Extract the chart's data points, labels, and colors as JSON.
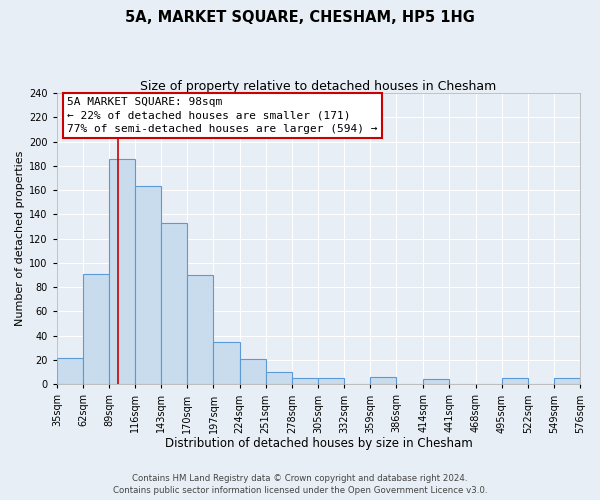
{
  "title": "5A, MARKET SQUARE, CHESHAM, HP5 1HG",
  "subtitle": "Size of property relative to detached houses in Chesham",
  "xlabel": "Distribution of detached houses by size in Chesham",
  "ylabel": "Number of detached properties",
  "bin_edges": [
    35,
    62,
    89,
    116,
    143,
    170,
    197,
    224,
    251,
    278,
    305,
    332,
    359,
    386,
    414,
    441,
    468,
    495,
    522,
    549,
    576
  ],
  "bar_heights": [
    22,
    91,
    186,
    163,
    133,
    90,
    35,
    21,
    10,
    5,
    5,
    0,
    6,
    0,
    4,
    0,
    0,
    5,
    0,
    5
  ],
  "bar_color": "#c9dcee",
  "bar_edge_color": "#5b9bd5",
  "bar_linewidth": 0.8,
  "red_line_x": 98,
  "red_line_color": "#cc0000",
  "ylim": [
    0,
    240
  ],
  "yticks": [
    0,
    20,
    40,
    60,
    80,
    100,
    120,
    140,
    160,
    180,
    200,
    220,
    240
  ],
  "annotation_text_line1": "5A MARKET SQUARE: 98sqm",
  "annotation_text_line2": "← 22% of detached houses are smaller (171)",
  "annotation_text_line3": "77% of semi-detached houses are larger (594) →",
  "annotation_box_edge_color": "#cc0000",
  "annotation_box_fill": "#ffffff",
  "footer_line1": "Contains HM Land Registry data © Crown copyright and database right 2024.",
  "footer_line2": "Contains public sector information licensed under the Open Government Licence v3.0.",
  "background_color": "#e8eef5",
  "plot_background_color": "#e8eef5",
  "grid_color": "#ffffff",
  "title_fontsize": 10.5,
  "subtitle_fontsize": 9,
  "xlabel_fontsize": 8.5,
  "ylabel_fontsize": 8,
  "tick_fontsize": 7,
  "annotation_fontsize": 8,
  "footer_fontsize": 6.2
}
